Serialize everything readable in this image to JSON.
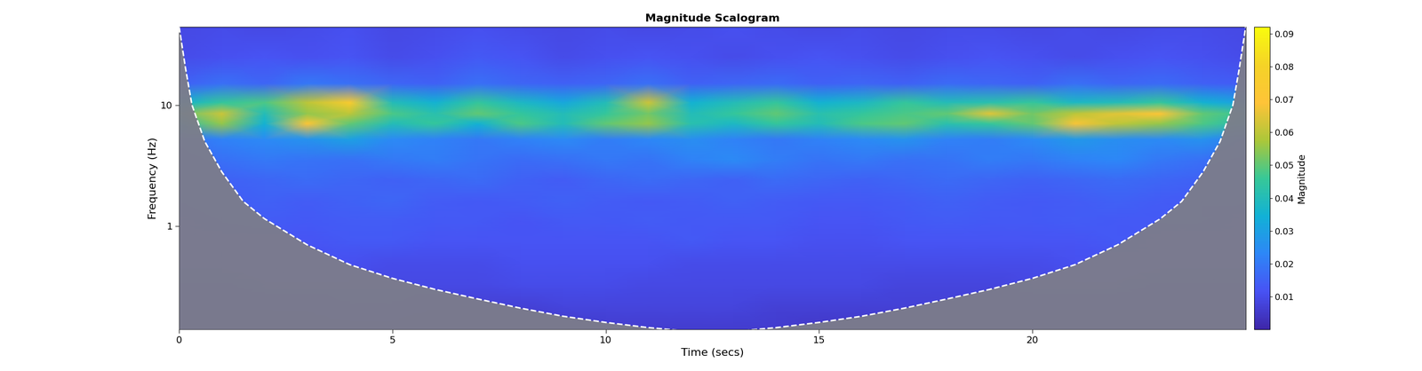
{
  "chart_data": {
    "type": "heatmap",
    "title": "Magnitude Scalogram",
    "x_label": "Time (secs)",
    "y_label": "Frequency (Hz)",
    "log": "y",
    "xlim": [
      0,
      25
    ],
    "xticks": [
      0,
      5,
      10,
      15,
      20
    ],
    "ylim": [
      0.14,
      44
    ],
    "yticks": [
      1,
      10
    ],
    "x": [
      0,
      1,
      2,
      3,
      4,
      5,
      6,
      7,
      8,
      9,
      10,
      11,
      12,
      13,
      14,
      15,
      16,
      17,
      18,
      19,
      20,
      21,
      22,
      23,
      24,
      25
    ],
    "y": [
      0.14,
      0.22,
      0.33,
      0.5,
      0.75,
      1.1,
      1.6,
      2.4,
      3.5,
      5.2,
      7,
      8.5,
      10.5,
      15,
      25,
      44
    ],
    "cells": [
      [
        0.005,
        0.005,
        0.005,
        0.006,
        0.006,
        0.006,
        0.005,
        0.005,
        0.005,
        0.005,
        0.006,
        0.006,
        0.006,
        0.006,
        0.006,
        0.005,
        0.005,
        0.005,
        0.005,
        0.005,
        0.005,
        0.005,
        0.005,
        0.005,
        0.005,
        0.005
      ],
      [
        0.007,
        0.007,
        0.007,
        0.007,
        0.008,
        0.008,
        0.007,
        0.007,
        0.007,
        0.008,
        0.008,
        0.008,
        0.008,
        0.008,
        0.007,
        0.007,
        0.007,
        0.007,
        0.007,
        0.007,
        0.007,
        0.007,
        0.007,
        0.007,
        0.007,
        0.007
      ],
      [
        0.008,
        0.008,
        0.009,
        0.009,
        0.009,
        0.009,
        0.009,
        0.009,
        0.01,
        0.01,
        0.01,
        0.009,
        0.009,
        0.009,
        0.009,
        0.009,
        0.009,
        0.008,
        0.008,
        0.008,
        0.009,
        0.009,
        0.009,
        0.008,
        0.008,
        0.008
      ],
      [
        0.01,
        0.01,
        0.011,
        0.011,
        0.011,
        0.01,
        0.01,
        0.01,
        0.011,
        0.011,
        0.011,
        0.011,
        0.01,
        0.01,
        0.01,
        0.01,
        0.01,
        0.01,
        0.01,
        0.01,
        0.01,
        0.011,
        0.011,
        0.01,
        0.01,
        0.01
      ],
      [
        0.011,
        0.012,
        0.012,
        0.012,
        0.013,
        0.013,
        0.012,
        0.012,
        0.012,
        0.012,
        0.012,
        0.012,
        0.013,
        0.012,
        0.012,
        0.011,
        0.011,
        0.012,
        0.012,
        0.012,
        0.012,
        0.012,
        0.013,
        0.012,
        0.012,
        0.012
      ],
      [
        0.012,
        0.013,
        0.014,
        0.013,
        0.014,
        0.014,
        0.013,
        0.013,
        0.012,
        0.013,
        0.013,
        0.014,
        0.013,
        0.013,
        0.013,
        0.012,
        0.012,
        0.013,
        0.014,
        0.013,
        0.013,
        0.014,
        0.013,
        0.013,
        0.013,
        0.012
      ],
      [
        0.013,
        0.014,
        0.015,
        0.014,
        0.015,
        0.016,
        0.014,
        0.013,
        0.014,
        0.015,
        0.014,
        0.013,
        0.014,
        0.015,
        0.014,
        0.013,
        0.013,
        0.014,
        0.015,
        0.014,
        0.013,
        0.014,
        0.015,
        0.014,
        0.013,
        0.013
      ],
      [
        0.014,
        0.015,
        0.016,
        0.017,
        0.016,
        0.015,
        0.016,
        0.017,
        0.015,
        0.014,
        0.016,
        0.017,
        0.016,
        0.015,
        0.017,
        0.016,
        0.015,
        0.016,
        0.017,
        0.016,
        0.015,
        0.016,
        0.017,
        0.016,
        0.015,
        0.014
      ],
      [
        0.015,
        0.018,
        0.02,
        0.019,
        0.018,
        0.02,
        0.021,
        0.019,
        0.017,
        0.018,
        0.02,
        0.019,
        0.022,
        0.024,
        0.021,
        0.019,
        0.02,
        0.018,
        0.019,
        0.021,
        0.02,
        0.022,
        0.023,
        0.02,
        0.018,
        0.016
      ],
      [
        0.018,
        0.022,
        0.024,
        0.026,
        0.03,
        0.024,
        0.022,
        0.02,
        0.022,
        0.024,
        0.021,
        0.023,
        0.025,
        0.022,
        0.02,
        0.022,
        0.024,
        0.026,
        0.022,
        0.021,
        0.024,
        0.028,
        0.025,
        0.024,
        0.026,
        0.02
      ],
      [
        0.04,
        0.055,
        0.035,
        0.07,
        0.05,
        0.04,
        0.045,
        0.035,
        0.048,
        0.04,
        0.05,
        0.055,
        0.042,
        0.038,
        0.045,
        0.04,
        0.048,
        0.05,
        0.042,
        0.045,
        0.05,
        0.068,
        0.06,
        0.055,
        0.048,
        0.04
      ],
      [
        0.05,
        0.062,
        0.04,
        0.055,
        0.06,
        0.048,
        0.042,
        0.05,
        0.045,
        0.04,
        0.045,
        0.052,
        0.04,
        0.045,
        0.05,
        0.042,
        0.045,
        0.048,
        0.05,
        0.065,
        0.052,
        0.06,
        0.065,
        0.07,
        0.05,
        0.045
      ],
      [
        0.035,
        0.045,
        0.048,
        0.06,
        0.075,
        0.04,
        0.035,
        0.045,
        0.038,
        0.032,
        0.04,
        0.062,
        0.035,
        0.04,
        0.045,
        0.035,
        0.038,
        0.045,
        0.04,
        0.042,
        0.045,
        0.038,
        0.04,
        0.045,
        0.035,
        0.03
      ],
      [
        0.015,
        0.018,
        0.016,
        0.02,
        0.018,
        0.016,
        0.015,
        0.018,
        0.016,
        0.015,
        0.016,
        0.018,
        0.015,
        0.016,
        0.017,
        0.015,
        0.016,
        0.015,
        0.017,
        0.016,
        0.015,
        0.018,
        0.016,
        0.017,
        0.015,
        0.014
      ],
      [
        0.01,
        0.011,
        0.012,
        0.011,
        0.012,
        0.01,
        0.011,
        0.013,
        0.012,
        0.01,
        0.011,
        0.012,
        0.011,
        0.01,
        0.011,
        0.012,
        0.011,
        0.01,
        0.011,
        0.012,
        0.011,
        0.01,
        0.011,
        0.012,
        0.011,
        0.01
      ],
      [
        0.009,
        0.01,
        0.009,
        0.01,
        0.011,
        0.009,
        0.01,
        0.011,
        0.01,
        0.009,
        0.01,
        0.009,
        0.01,
        0.011,
        0.01,
        0.009,
        0.01,
        0.009,
        0.01,
        0.01,
        0.009,
        0.01,
        0.009,
        0.01,
        0.01,
        0.009
      ]
    ],
    "cone_of_influence": {
      "x": [
        0,
        0.15,
        0.3,
        0.6,
        1,
        1.5,
        2,
        3,
        4,
        5,
        6,
        7,
        8,
        9,
        10,
        11,
        12,
        13,
        14,
        15,
        16,
        17,
        18,
        19,
        20,
        21,
        22,
        23,
        23.5,
        24,
        24.4,
        24.7,
        24.85,
        25
      ],
      "y": [
        44,
        20,
        10,
        5,
        2.8,
        1.6,
        1.15,
        0.7,
        0.48,
        0.37,
        0.3,
        0.25,
        0.21,
        0.18,
        0.16,
        0.145,
        0.135,
        0.135,
        0.145,
        0.16,
        0.18,
        0.21,
        0.25,
        0.3,
        0.37,
        0.48,
        0.7,
        1.15,
        1.6,
        2.8,
        5,
        10,
        20,
        44
      ]
    },
    "colorbar": {
      "label": "Magnitude",
      "range": [
        0,
        0.092
      ],
      "ticks": [
        0.01,
        0.02,
        0.03,
        0.04,
        0.05,
        0.06,
        0.07,
        0.08,
        0.09
      ]
    }
  }
}
